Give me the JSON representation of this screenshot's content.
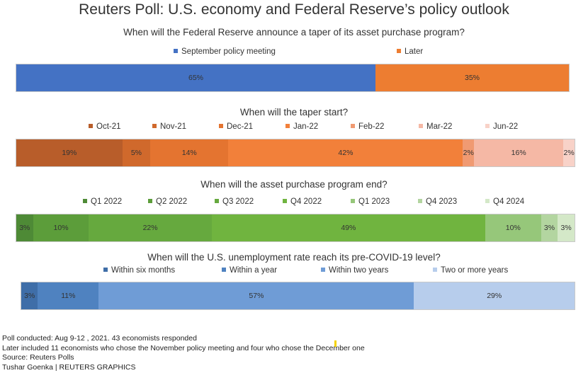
{
  "title": "Reuters Poll: U.S. economy and Federal Reserve’s policy outlook",
  "chart_data": [
    {
      "type": "bar",
      "orientation": "horizontal-stacked-100",
      "title": "When will the Federal Reserve announce a taper of its asset purchase program?",
      "series": [
        {
          "name": "September policy meeting",
          "value": 65,
          "label": "65%",
          "color": "#4472c4"
        },
        {
          "name": "Later",
          "value": 35,
          "label": "35%",
          "color": "#ed7d31"
        }
      ]
    },
    {
      "type": "bar",
      "orientation": "horizontal-stacked-100",
      "title": "When will the taper start?",
      "series": [
        {
          "name": "Oct-21",
          "value": 19,
          "label": "19%",
          "color": "#b85d2a"
        },
        {
          "name": "Nov-21",
          "value": 5,
          "label": "5%",
          "color": "#d0692c"
        },
        {
          "name": "Dec-21",
          "value": 14,
          "label": "14%",
          "color": "#e47430"
        },
        {
          "name": "Jan-22",
          "value": 42,
          "label": "42%",
          "color": "#f2803a"
        },
        {
          "name": "Feb-22",
          "value": 2,
          "label": "2%",
          "color": "#f09a72"
        },
        {
          "name": "Mar-22",
          "value": 16,
          "label": "16%",
          "color": "#f5b8a5"
        },
        {
          "name": "Jun-22",
          "value": 2,
          "label": "2%",
          "color": "#f8d2c8"
        }
      ]
    },
    {
      "type": "bar",
      "orientation": "horizontal-stacked-100",
      "title": "When will the asset purchase program end?",
      "series": [
        {
          "name": "Q1 2022",
          "value": 3,
          "label": "3%",
          "color": "#4e8a36"
        },
        {
          "name": "Q2 2022",
          "value": 10,
          "label": "10%",
          "color": "#5c9d3a"
        },
        {
          "name": "Q3 2022",
          "value": 22,
          "label": "22%",
          "color": "#66a93e"
        },
        {
          "name": "Q4 2022",
          "value": 49,
          "label": "49%",
          "color": "#70b43f"
        },
        {
          "name": "Q1 2023",
          "value": 10,
          "label": "10%",
          "color": "#96c77a"
        },
        {
          "name": "Q4 2023",
          "value": 3,
          "label": "3%",
          "color": "#b3d5a0"
        },
        {
          "name": "Q4 2024",
          "value": 3,
          "label": "3%",
          "color": "#d4e8c8"
        }
      ]
    },
    {
      "type": "bar",
      "orientation": "horizontal-stacked-100",
      "title": "When will the U.S. unemployment rate reach its pre-COVID-19 level?",
      "series": [
        {
          "name": "Within six months",
          "value": 3,
          "label": "3%",
          "color": "#3f6ea8"
        },
        {
          "name": "Within a year",
          "value": 11,
          "label": "11%",
          "color": "#4f82c0"
        },
        {
          "name": "Within two years",
          "value": 57,
          "label": "57%",
          "color": "#6f9cd6"
        },
        {
          "name": "Two or more years",
          "value": 29,
          "label": "29%",
          "color": "#b7cdec"
        }
      ]
    }
  ],
  "footer": {
    "line1": "Poll conducted: Aug 9-12 , 2021. 43 economists responded",
    "line2": "Later included 11 economists who chose the November policy meeting and four who chose the December one",
    "line3": "Source: Reuters Polls",
    "line4": "Tushar Goenka | REUTERS GRAPHICS"
  }
}
